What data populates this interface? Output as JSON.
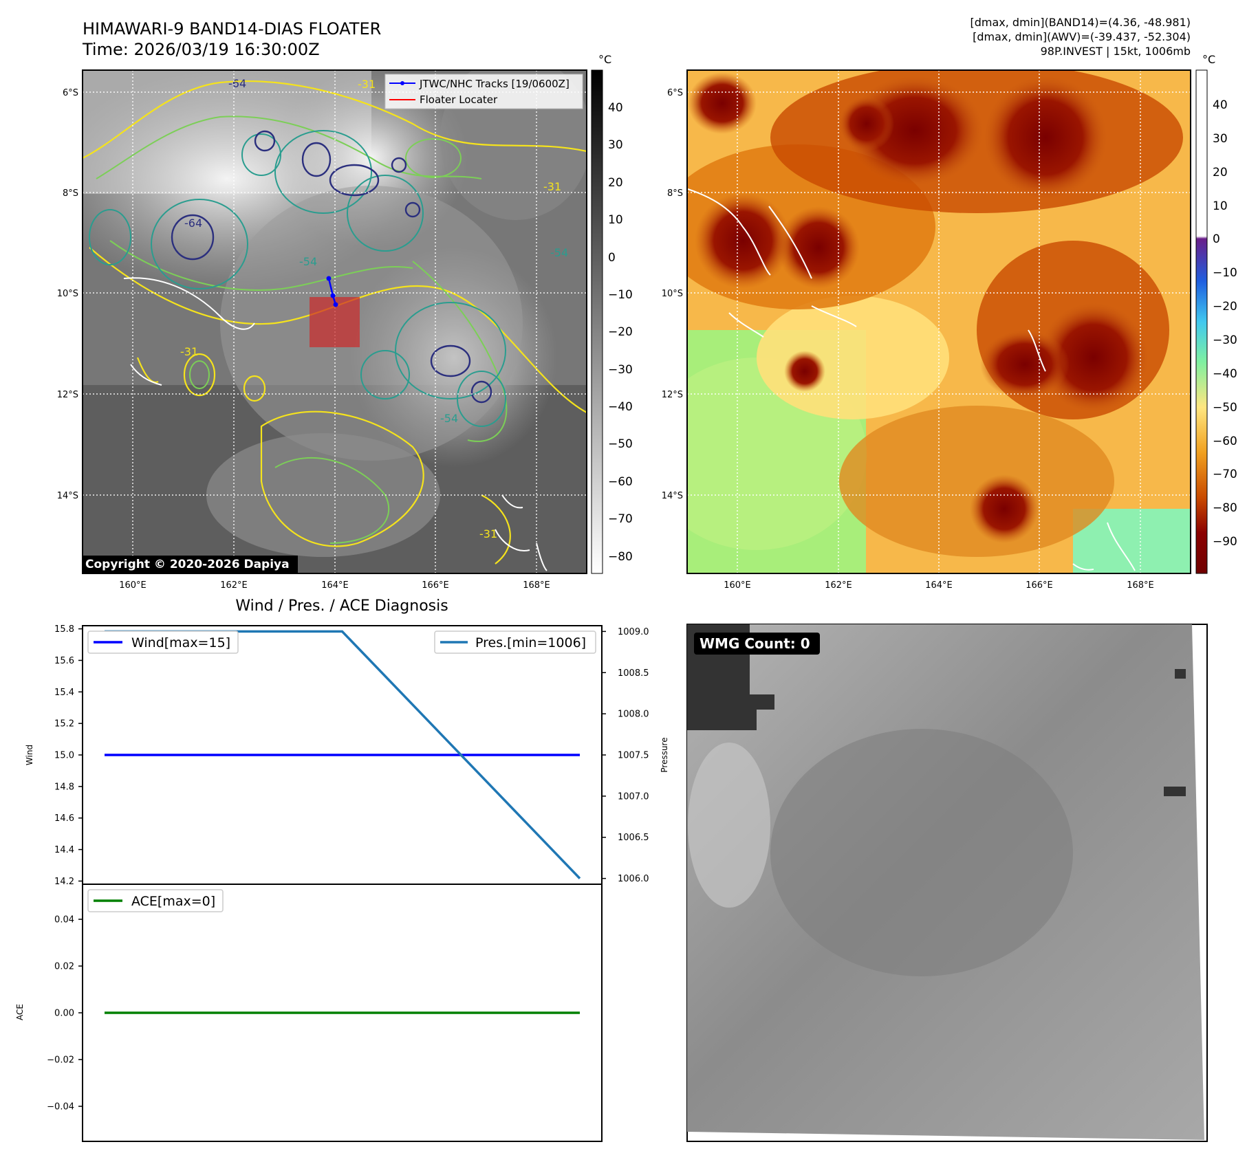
{
  "header": {
    "title_line1": "HIMAWARI-9 BAND14-DIAS FLOATER",
    "title_line2": "Time: 2026/03/19 16:30:00Z",
    "info_line1": "[dmax, dmin](BAND14)=(4.36, -48.981)",
    "info_line2": "[dmax, dmin](AWV)=(-39.437, -52.304)",
    "info_line3": "98P.INVEST | 15kt, 1006mb"
  },
  "colors": {
    "wind": "#0000ff",
    "pressure": "#1f77b4",
    "ace": "#008000",
    "track": "#0000ff",
    "locater": "#ff0000",
    "contour_yellow": "#f5e31c",
    "contour_green": "#7ccf57",
    "contour_teal": "#2a9d8f",
    "contour_navy": "#2b2f7e"
  },
  "maps": {
    "lon_ticks": [
      "160°E",
      "162°E",
      "164°E",
      "166°E",
      "168°E"
    ],
    "lat_ticks": [
      "6°S",
      "8°S",
      "10°S",
      "12°S",
      "14°S"
    ],
    "legend": [
      "JTWC/NHC Tracks [19/0600Z]",
      "Floater Locater"
    ],
    "copyright": "Copyright © 2020-2026 Dapiya",
    "contour_labels": [
      "-31",
      "-54",
      "-64",
      "-31",
      "-64",
      "-54",
      "-31",
      "-54",
      "-31",
      "-31"
    ]
  },
  "colorbar_bw": {
    "unit": "°C",
    "ticks": [
      "40",
      "30",
      "20",
      "10",
      "0",
      "−10",
      "−20",
      "−30",
      "−40",
      "−50",
      "−60",
      "−70",
      "−80"
    ]
  },
  "colorbar_color": {
    "unit": "°C",
    "ticks": [
      "40",
      "30",
      "20",
      "10",
      "0",
      "−10",
      "−20",
      "−30",
      "−40",
      "−50",
      "−60",
      "−70",
      "−80",
      "−90"
    ]
  },
  "wmg": {
    "label": "WMG Count: 0"
  },
  "diag": {
    "title": "Wind / Pres. / ACE Diagnosis",
    "wind_axis_label": "Wind",
    "pressure_axis_label": "Pressure",
    "ace_axis_label": "ACE",
    "wind_legend": "Wind[max=15]",
    "pressure_legend": "Pres.[min=1006]",
    "ace_legend": "ACE[max=0]",
    "wind_ticks": [
      "15.8",
      "15.6",
      "15.4",
      "15.2",
      "15.0",
      "14.8",
      "14.6",
      "14.4",
      "14.2"
    ],
    "pressure_ticks": [
      "1009.0",
      "1008.5",
      "1008.0",
      "1007.5",
      "1007.0",
      "1006.5",
      "1006.0"
    ],
    "ace_ticks": [
      "0.04",
      "0.02",
      "0.00",
      "−0.02",
      "−0.04"
    ]
  },
  "chart_data": [
    {
      "type": "line",
      "title": "Wind / Pres. / ACE Diagnosis",
      "ylabel": "Wind",
      "ylim": [
        14.18,
        15.82
      ],
      "series": [
        {
          "name": "Wind[max=15]",
          "values": [
            15,
            15
          ]
        }
      ]
    },
    {
      "type": "line",
      "ylabel": "Pressure",
      "ylim": [
        1005.93,
        1009.07
      ],
      "series": [
        {
          "name": "Pres.[min=1006]",
          "x": [
            0,
            0.5,
            1
          ],
          "values": [
            1009,
            1009,
            1006
          ]
        }
      ]
    },
    {
      "type": "line",
      "ylabel": "ACE",
      "ylim": [
        -0.055,
        0.055
      ],
      "series": [
        {
          "name": "ACE[max=0]",
          "values": [
            0,
            0
          ]
        }
      ]
    }
  ]
}
